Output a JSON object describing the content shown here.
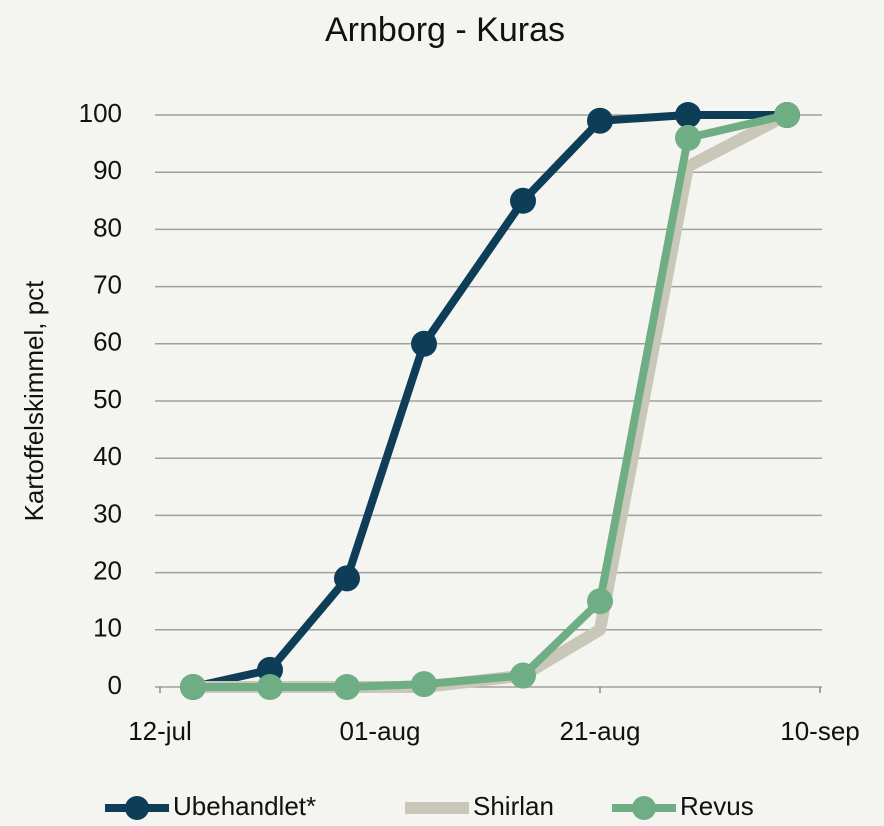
{
  "chart_data": {
    "type": "line",
    "title": "Arnborg - Kuras",
    "ylabel": "Kartoffelskimmel, pct",
    "x": [
      3,
      10,
      17,
      24,
      33,
      40,
      48,
      57
    ],
    "xlim": [
      0,
      60
    ],
    "xticks": [
      {
        "value": 0,
        "label": "12-jul"
      },
      {
        "value": 20,
        "label": "01-aug"
      },
      {
        "value": 40,
        "label": "21-aug"
      },
      {
        "value": 60,
        "label": "10-sep"
      }
    ],
    "ylim": [
      0,
      100
    ],
    "yticks": [
      0,
      10,
      20,
      30,
      40,
      50,
      60,
      70,
      80,
      90,
      100
    ],
    "grid": true,
    "legend": "bottom",
    "series": [
      {
        "name": "Ubehandlet*",
        "color": "#0e3d57",
        "markers": true,
        "values": [
          0,
          3,
          19,
          60,
          85,
          99,
          100,
          100
        ]
      },
      {
        "name": "Shirlan",
        "color": "#c9c8b8",
        "markers": false,
        "values": [
          0,
          0,
          0,
          0,
          2,
          10,
          91,
          100
        ]
      },
      {
        "name": "Revus",
        "color": "#6fae84",
        "markers": true,
        "values": [
          0,
          0,
          0,
          0.5,
          2,
          15,
          96,
          100
        ]
      }
    ]
  }
}
